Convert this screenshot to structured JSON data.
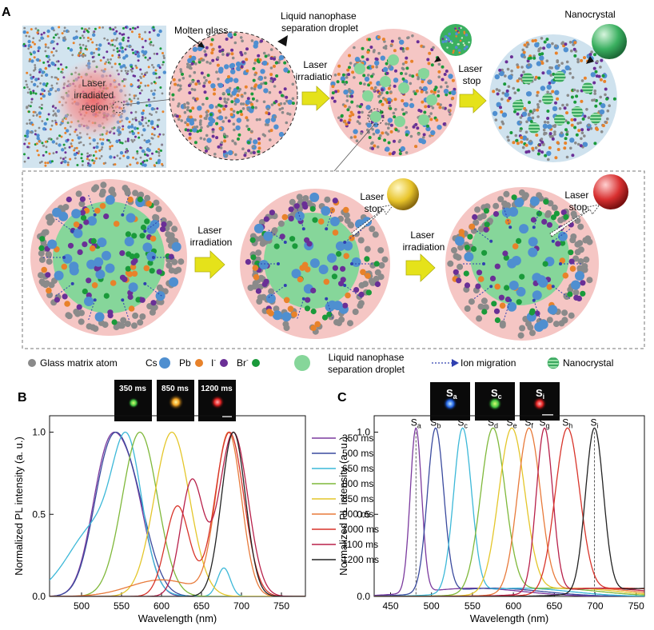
{
  "figure": {
    "panel_a_label": "A",
    "panel_b_label": "B",
    "panel_c_label": "C",
    "schematic": {
      "laser_region_label": [
        "Laser",
        "irradiated",
        "region"
      ],
      "molten_glass": "Molten glass",
      "liquid_droplet_label": [
        "Liquid nanophase",
        "separation droplet"
      ],
      "laser_irradiation": [
        "Laser",
        "irradiation"
      ],
      "laser_stop": [
        "Laser",
        "stop"
      ],
      "nanocrystal": "Nanocrystal"
    },
    "legend": {
      "glass_matrix_atom": "Glass matrix atom",
      "cs": "Cs",
      "pb": "Pb",
      "i": "I",
      "br": "Br",
      "ion_sup": "-",
      "liquid_droplet": [
        "Liquid nanophase",
        "separation droplet"
      ],
      "ion_migration": "Ion migration",
      "nanocrystal": "Nanocrystal"
    },
    "inset_b": [
      "350 ms",
      "850 ms",
      "1200 ms"
    ],
    "inset_c": [
      {
        "base": "S",
        "sub": "a"
      },
      {
        "base": "S",
        "sub": "c"
      },
      {
        "base": "S",
        "sub": "i"
      }
    ],
    "colors": {
      "cs": "#4f8fd0",
      "pb": "#e8822a",
      "i": "#6a2f96",
      "br": "#1a9a3a",
      "glass": "#8a8a8a",
      "droplet": "#86d69a",
      "pink": "#f5c4c2",
      "blue_bg": "#cfe2ee",
      "arrow_yellow": "#e5e21a"
    }
  },
  "chart_data": [
    {
      "type": "line",
      "panel": "B",
      "xlabel": "Wavelength (nm)",
      "ylabel": "Normalized PL intensity (a. u.)",
      "xlim": [
        460,
        780
      ],
      "ylim": [
        0,
        1.1
      ],
      "xticks": [
        500,
        550,
        600,
        650,
        700,
        750
      ],
      "yticks": [
        0.0,
        0.5,
        1.0
      ],
      "series": [
        {
          "name": "350 ms",
          "color": "#7b3a9e",
          "peaks": [
            [
              533,
              1.0,
              20
            ],
            [
              565,
              0.62,
              18
            ]
          ]
        },
        {
          "name": "500 ms",
          "color": "#3a4a9e",
          "peaks": [
            [
              532,
              0.97,
              20
            ],
            [
              562,
              0.85,
              22
            ]
          ]
        },
        {
          "name": "650 ms",
          "color": "#3cb8d8",
          "peaks": [
            [
              520,
              0.55,
              35
            ],
            [
              558,
              0.95,
              18
            ],
            [
              678,
              0.22,
              8
            ]
          ]
        },
        {
          "name": "800 ms",
          "color": "#7fb83a",
          "peaks": [
            [
              573,
              1.0,
              22
            ]
          ]
        },
        {
          "name": "850 ms",
          "color": "#e4c62a",
          "peaks": [
            [
              613,
              1.0,
              22
            ]
          ]
        },
        {
          "name": "900 ms",
          "color": "#e87a3a",
          "peaks": [
            [
              600,
              0.1,
              40
            ],
            [
              684,
              0.98,
              16
            ]
          ]
        },
        {
          "name": "1000 ms",
          "color": "#d8342a",
          "peaks": [
            [
              620,
              0.55,
              15
            ],
            [
              685,
              1.0,
              18
            ]
          ]
        },
        {
          "name": "1100 ms",
          "color": "#b8204a",
          "peaks": [
            [
              638,
              0.7,
              14
            ],
            [
              690,
              1.0,
              18
            ]
          ]
        },
        {
          "name": "1200 ms",
          "color": "#222222",
          "peaks": [
            [
              690,
              1.0,
              15
            ]
          ]
        }
      ]
    },
    {
      "type": "line",
      "panel": "C",
      "xlabel": "Wavelength (nm)",
      "ylabel": "Normalized PL intensity (a. u.)",
      "xlim": [
        430,
        760
      ],
      "ylim": [
        0,
        1.1
      ],
      "xticks": [
        450,
        500,
        550,
        600,
        650,
        700,
        750
      ],
      "yticks": [
        0.0,
        0.5,
        1.0
      ],
      "series": [
        {
          "name": "Sa",
          "sub": "a",
          "color": "#7b3a9e",
          "peak": 481,
          "width": 7
        },
        {
          "name": "Sb",
          "sub": "b",
          "color": "#3a4a9e",
          "peak": 505,
          "width": 10
        },
        {
          "name": "Sc",
          "sub": "c",
          "color": "#3cb8d8",
          "peak": 538,
          "width": 11
        },
        {
          "name": "Sd",
          "sub": "d",
          "color": "#7fb83a",
          "peak": 575,
          "width": 15
        },
        {
          "name": "Se",
          "sub": "e",
          "color": "#e4c62a",
          "peak": 598,
          "width": 16
        },
        {
          "name": "Sf",
          "sub": "f",
          "color": "#e87a3a",
          "peak": 619,
          "width": 14
        },
        {
          "name": "Sg",
          "sub": "g",
          "color": "#b8204a",
          "peak": 638,
          "width": 10
        },
        {
          "name": "Sh",
          "sub": "h",
          "color": "#d8342a",
          "peak": 666,
          "width": 15
        },
        {
          "name": "Si",
          "sub": "i",
          "color": "#222222",
          "peak": 699,
          "width": 11
        }
      ],
      "dashed_lines_at": [
        481,
        699
      ]
    }
  ]
}
